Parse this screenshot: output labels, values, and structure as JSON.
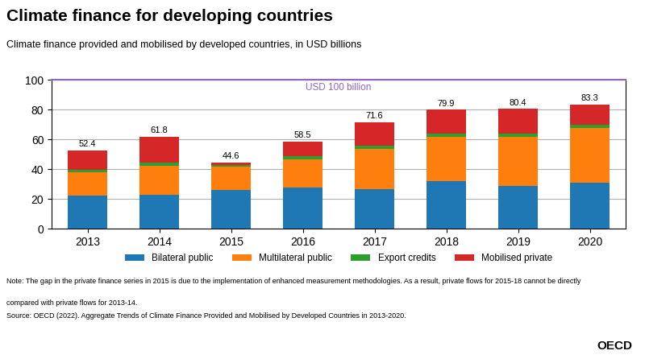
{
  "chart_data": {
    "type": "bar",
    "stacked": true,
    "title": "Climate finance for developing countries",
    "subtitle": "Climate finance provided and mobilised by developed countries, in USD billions",
    "categories": [
      "2013",
      "2014",
      "2015",
      "2016",
      "2017",
      "2018",
      "2019",
      "2020"
    ],
    "series": [
      {
        "name": "Bilateral public",
        "values": [
          22.0,
          23.0,
          26.0,
          27.5,
          26.5,
          32.0,
          29.0,
          31.0
        ]
      },
      {
        "name": "Multilateral public",
        "values": [
          16.0,
          19.5,
          15.5,
          19.0,
          27.0,
          29.5,
          32.5,
          36.5
        ]
      },
      {
        "name": "Export credits",
        "values": [
          1.5,
          2.0,
          1.5,
          2.0,
          2.5,
          2.5,
          2.5,
          2.5
        ]
      },
      {
        "name": "Mobilised private",
        "values": [
          12.9,
          17.3,
          1.6,
          10.0,
          15.6,
          15.9,
          16.4,
          13.3
        ]
      }
    ],
    "totals": [
      52.4,
      61.8,
      44.6,
      58.5,
      71.6,
      79.9,
      80.4,
      83.3
    ],
    "reference_line": 100,
    "reference_label": "USD 100 billion",
    "ylim": [
      0,
      100
    ],
    "yticks": [
      0,
      20,
      40,
      60,
      80,
      100
    ],
    "grid": true,
    "legend": "upper center",
    "notes": [
      "Note: The gap in the private finance series in 2015 is due to the implementation of enhanced measurement methodologies. As a result, private flows for 2015-18 cannot be directly",
      "compared with private flows for 2013-14."
    ],
    "source": "Source: OECD (2022). Aggregate Trends of Climate Finance Provided and Mobilised by Developed Countries in 2013-2020.",
    "brand": "OECD"
  }
}
